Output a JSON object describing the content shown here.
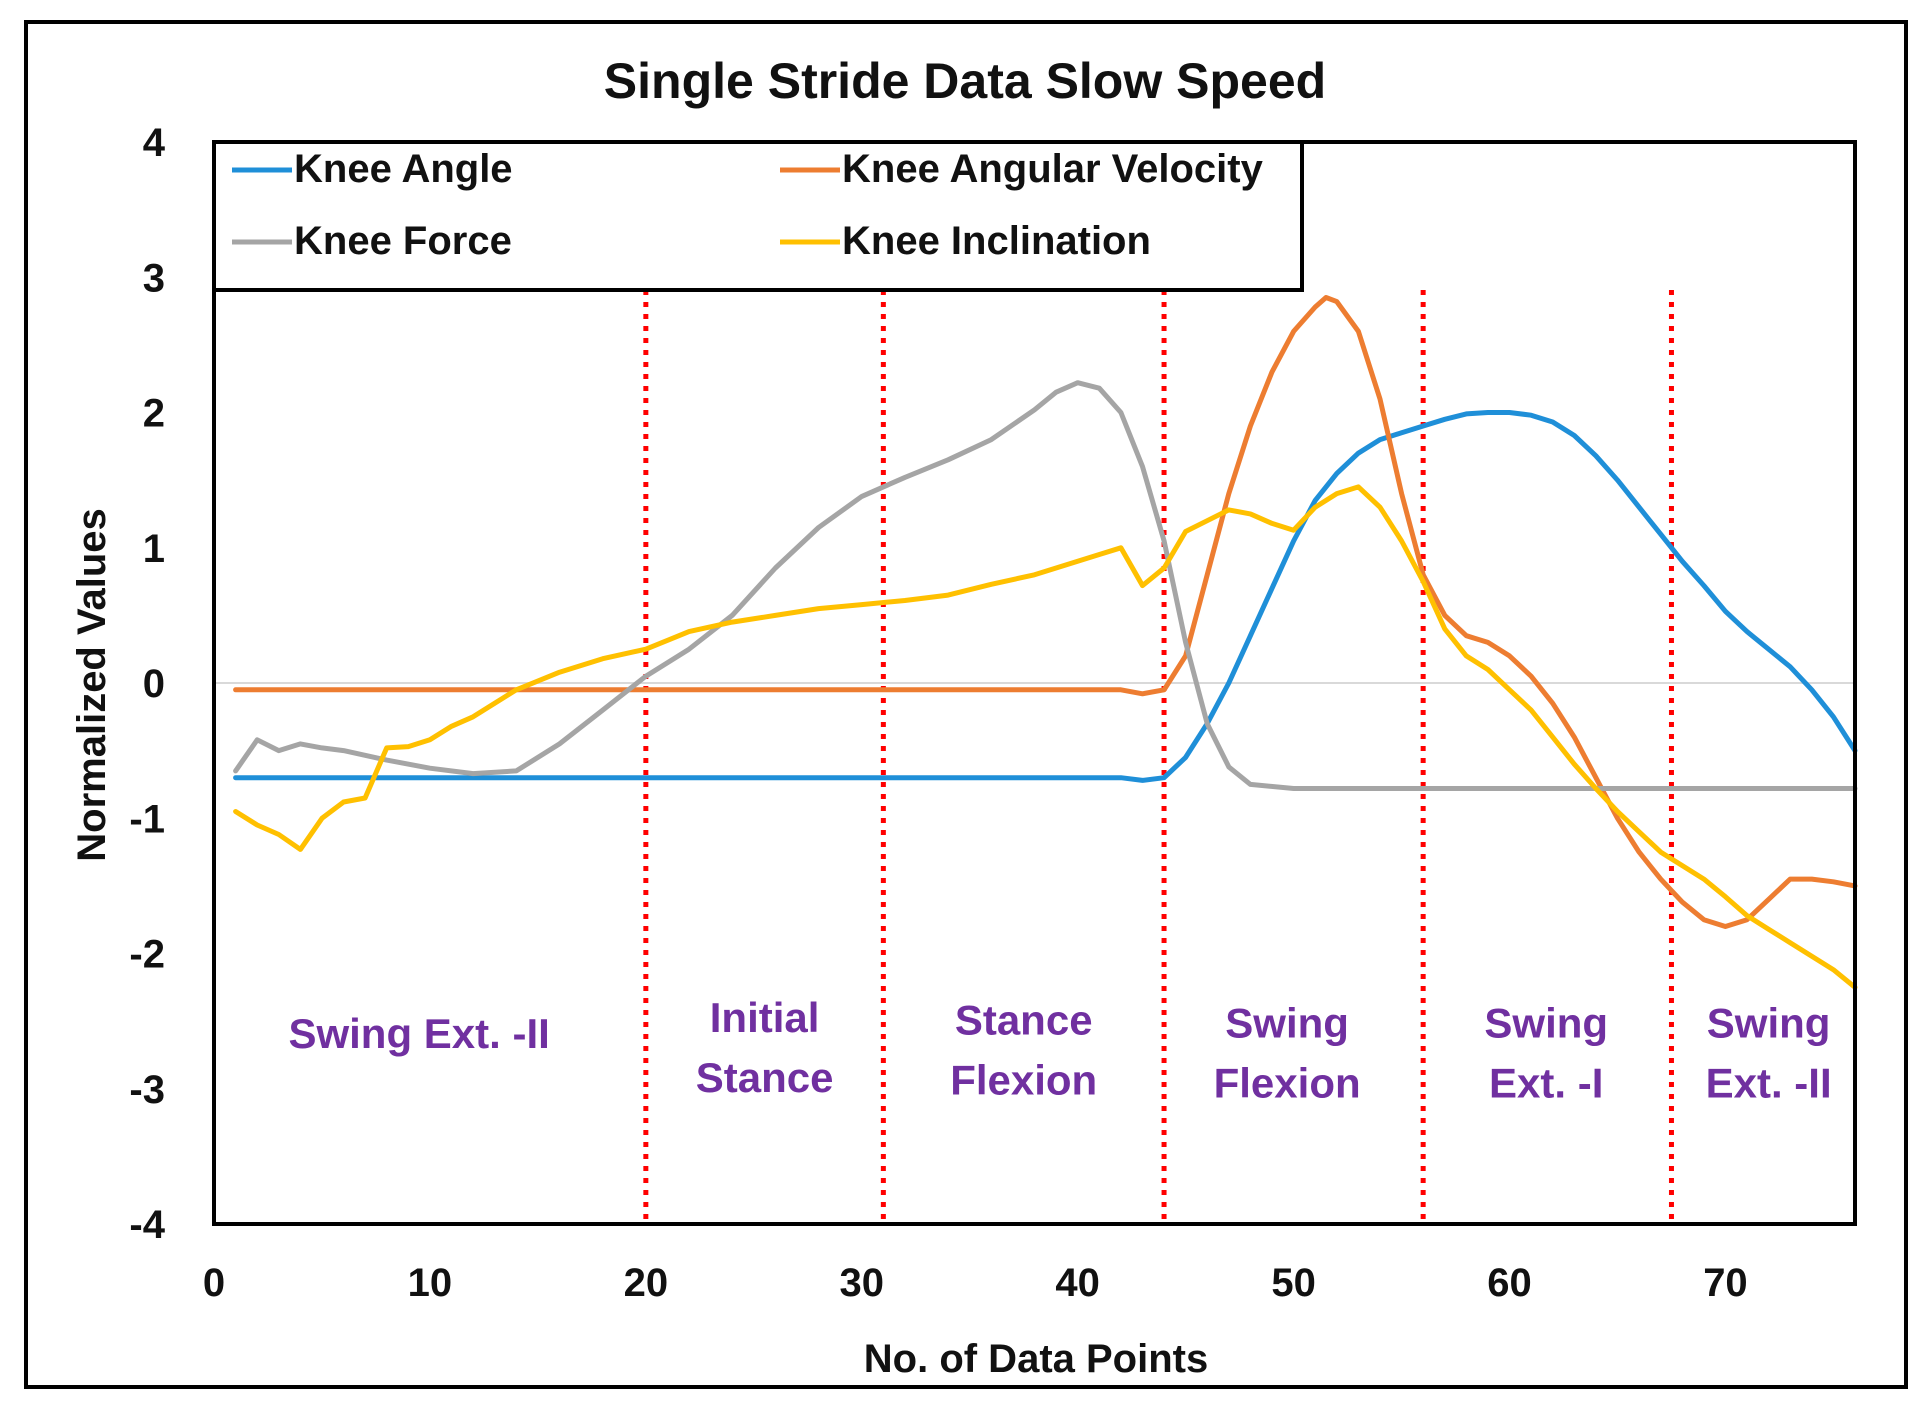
{
  "chart_data": {
    "type": "line",
    "title": "Single Stride Data Slow Speed",
    "xlabel": "No. of Data Points",
    "ylabel": "Normalized Values",
    "xlim": [
      0,
      76
    ],
    "ylim": [
      -4,
      4
    ],
    "x_ticks": [
      "0",
      "10",
      "20",
      "30",
      "40",
      "50",
      "60",
      "70"
    ],
    "y_ticks": [
      "4",
      "3",
      "2",
      "1",
      "0",
      "-1",
      "-2",
      "-3",
      "-4"
    ],
    "legend_position": "top-left",
    "phase_boundaries": [
      20,
      31,
      44,
      56,
      67.5
    ],
    "phases": [
      {
        "lines": [
          "Swing Ext. -II"
        ],
        "center": 9.5,
        "y": -2.7
      },
      {
        "lines": [
          "Initial",
          "Stance"
        ],
        "center": 25.5,
        "y": -2.58
      },
      {
        "lines": [
          "Stance",
          "Flexion"
        ],
        "center": 37.5,
        "y": -2.6
      },
      {
        "lines": [
          "Swing",
          "Flexion"
        ],
        "center": 49.7,
        "y": -2.62
      },
      {
        "lines": [
          "Swing",
          "Ext. -I"
        ],
        "center": 61.7,
        "y": -2.62
      },
      {
        "lines": [
          "Swing",
          "Ext. -II"
        ],
        "center": 72,
        "y": -2.62
      }
    ],
    "series": [
      {
        "name": "Knee Angle",
        "color": "#1f8fd8",
        "points": [
          [
            1,
            -0.7
          ],
          [
            5,
            -0.7
          ],
          [
            10,
            -0.7
          ],
          [
            20,
            -0.7
          ],
          [
            30,
            -0.7
          ],
          [
            40,
            -0.7
          ],
          [
            42,
            -0.7
          ],
          [
            43,
            -0.72
          ],
          [
            44,
            -0.7
          ],
          [
            45,
            -0.55
          ],
          [
            46,
            -0.3
          ],
          [
            47,
            0.0
          ],
          [
            48,
            0.35
          ],
          [
            49,
            0.7
          ],
          [
            50,
            1.05
          ],
          [
            51,
            1.35
          ],
          [
            52,
            1.55
          ],
          [
            53,
            1.7
          ],
          [
            54,
            1.8
          ],
          [
            55,
            1.85
          ],
          [
            56,
            1.9
          ],
          [
            57,
            1.95
          ],
          [
            58,
            1.99
          ],
          [
            59,
            2.0
          ],
          [
            60,
            2.0
          ],
          [
            61,
            1.98
          ],
          [
            62,
            1.93
          ],
          [
            63,
            1.83
          ],
          [
            64,
            1.68
          ],
          [
            65,
            1.5
          ],
          [
            66,
            1.3
          ],
          [
            67,
            1.1
          ],
          [
            68,
            0.9
          ],
          [
            69,
            0.72
          ],
          [
            70,
            0.53
          ],
          [
            71,
            0.38
          ],
          [
            72,
            0.25
          ],
          [
            73,
            0.12
          ],
          [
            74,
            -0.05
          ],
          [
            75,
            -0.25
          ],
          [
            76,
            -0.5
          ]
        ]
      },
      {
        "name": "Knee Angular Velocity",
        "color": "#ed7d31",
        "points": [
          [
            1,
            -0.05
          ],
          [
            10,
            -0.05
          ],
          [
            20,
            -0.05
          ],
          [
            30,
            -0.05
          ],
          [
            40,
            -0.05
          ],
          [
            42,
            -0.05
          ],
          [
            43,
            -0.08
          ],
          [
            44,
            -0.05
          ],
          [
            45,
            0.2
          ],
          [
            46,
            0.8
          ],
          [
            47,
            1.4
          ],
          [
            48,
            1.9
          ],
          [
            49,
            2.3
          ],
          [
            50,
            2.6
          ],
          [
            51,
            2.78
          ],
          [
            51.5,
            2.85
          ],
          [
            52,
            2.82
          ],
          [
            53,
            2.6
          ],
          [
            54,
            2.1
          ],
          [
            55,
            1.4
          ],
          [
            56,
            0.8
          ],
          [
            57,
            0.5
          ],
          [
            58,
            0.35
          ],
          [
            59,
            0.3
          ],
          [
            60,
            0.2
          ],
          [
            61,
            0.05
          ],
          [
            62,
            -0.15
          ],
          [
            63,
            -0.4
          ],
          [
            64,
            -0.7
          ],
          [
            65,
            -1.0
          ],
          [
            66,
            -1.25
          ],
          [
            67,
            -1.45
          ],
          [
            68,
            -1.62
          ],
          [
            69,
            -1.75
          ],
          [
            70,
            -1.8
          ],
          [
            71,
            -1.75
          ],
          [
            72,
            -1.6
          ],
          [
            73,
            -1.45
          ],
          [
            74,
            -1.45
          ],
          [
            75,
            -1.47
          ],
          [
            76,
            -1.5
          ]
        ]
      },
      {
        "name": "Knee Force",
        "color": "#a5a5a5",
        "points": [
          [
            1,
            -0.65
          ],
          [
            2,
            -0.42
          ],
          [
            3,
            -0.5
          ],
          [
            4,
            -0.45
          ],
          [
            5,
            -0.48
          ],
          [
            6,
            -0.5
          ],
          [
            8,
            -0.57
          ],
          [
            10,
            -0.63
          ],
          [
            12,
            -0.67
          ],
          [
            14,
            -0.65
          ],
          [
            16,
            -0.45
          ],
          [
            18,
            -0.2
          ],
          [
            20,
            0.05
          ],
          [
            22,
            0.25
          ],
          [
            24,
            0.5
          ],
          [
            26,
            0.85
          ],
          [
            28,
            1.15
          ],
          [
            30,
            1.38
          ],
          [
            32,
            1.52
          ],
          [
            34,
            1.65
          ],
          [
            36,
            1.8
          ],
          [
            38,
            2.02
          ],
          [
            39,
            2.15
          ],
          [
            40,
            2.22
          ],
          [
            41,
            2.18
          ],
          [
            42,
            2.0
          ],
          [
            43,
            1.6
          ],
          [
            44,
            1.05
          ],
          [
            45,
            0.3
          ],
          [
            46,
            -0.3
          ],
          [
            47,
            -0.62
          ],
          [
            48,
            -0.75
          ],
          [
            50,
            -0.78
          ],
          [
            55,
            -0.78
          ],
          [
            60,
            -0.78
          ],
          [
            65,
            -0.78
          ],
          [
            70,
            -0.78
          ],
          [
            76,
            -0.78
          ]
        ]
      },
      {
        "name": "Knee Inclination",
        "color": "#ffc000",
        "points": [
          [
            1,
            -0.95
          ],
          [
            2,
            -1.05
          ],
          [
            3,
            -1.12
          ],
          [
            4,
            -1.23
          ],
          [
            5,
            -1.0
          ],
          [
            6,
            -0.88
          ],
          [
            7,
            -0.85
          ],
          [
            8,
            -0.48
          ],
          [
            9,
            -0.47
          ],
          [
            10,
            -0.42
          ],
          [
            11,
            -0.32
          ],
          [
            12,
            -0.25
          ],
          [
            13,
            -0.15
          ],
          [
            14,
            -0.05
          ],
          [
            16,
            0.08
          ],
          [
            18,
            0.18
          ],
          [
            20,
            0.25
          ],
          [
            22,
            0.38
          ],
          [
            24,
            0.45
          ],
          [
            26,
            0.5
          ],
          [
            28,
            0.55
          ],
          [
            30,
            0.58
          ],
          [
            32,
            0.61
          ],
          [
            34,
            0.65
          ],
          [
            36,
            0.73
          ],
          [
            38,
            0.8
          ],
          [
            40,
            0.9
          ],
          [
            41,
            0.95
          ],
          [
            42,
            1.0
          ],
          [
            43,
            0.72
          ],
          [
            44,
            0.85
          ],
          [
            45,
            1.12
          ],
          [
            46,
            1.2
          ],
          [
            47,
            1.28
          ],
          [
            48,
            1.25
          ],
          [
            49,
            1.18
          ],
          [
            50,
            1.13
          ],
          [
            51,
            1.3
          ],
          [
            52,
            1.4
          ],
          [
            53,
            1.45
          ],
          [
            54,
            1.3
          ],
          [
            55,
            1.05
          ],
          [
            56,
            0.75
          ],
          [
            57,
            0.4
          ],
          [
            58,
            0.2
          ],
          [
            59,
            0.1
          ],
          [
            60,
            -0.05
          ],
          [
            61,
            -0.2
          ],
          [
            62,
            -0.4
          ],
          [
            63,
            -0.6
          ],
          [
            64,
            -0.78
          ],
          [
            65,
            -0.95
          ],
          [
            66,
            -1.1
          ],
          [
            67,
            -1.25
          ],
          [
            68,
            -1.35
          ],
          [
            69,
            -1.45
          ],
          [
            70,
            -1.58
          ],
          [
            71,
            -1.72
          ],
          [
            72,
            -1.82
          ],
          [
            73,
            -1.92
          ],
          [
            74,
            -2.02
          ],
          [
            75,
            -2.12
          ],
          [
            76,
            -2.25
          ]
        ]
      }
    ]
  }
}
